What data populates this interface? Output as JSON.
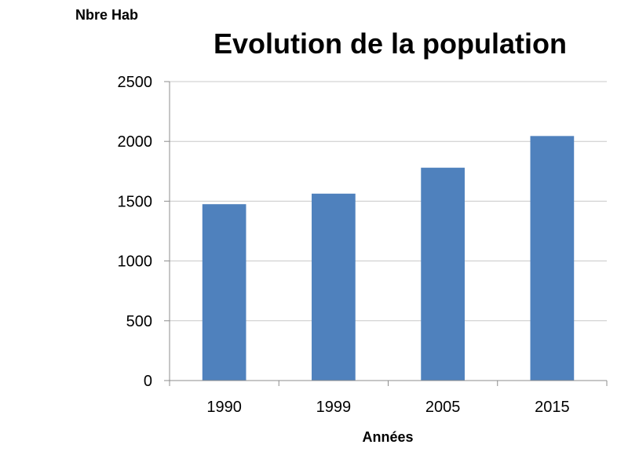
{
  "chart_data": {
    "type": "bar",
    "title": "Evolution de la population",
    "ylabel": "Nbre Hab",
    "xlabel": "Années",
    "categories": [
      "1990",
      "1999",
      "2005",
      "2015"
    ],
    "values": [
      1475,
      1563,
      1780,
      2045
    ],
    "ylim": [
      0,
      2500
    ],
    "yticks": [
      0,
      500,
      1000,
      1500,
      2000,
      2500
    ],
    "grid": true,
    "legend": "none",
    "bar_color": "#4f81bd"
  }
}
